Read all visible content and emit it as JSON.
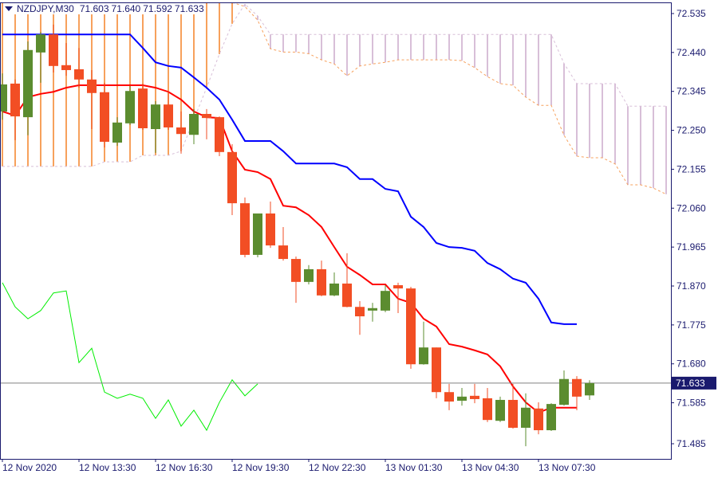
{
  "header": {
    "symbol": "NZDJPY,M30",
    "open": "71.603",
    "high": "71.640",
    "low": "71.592",
    "close": "71.633"
  },
  "colors": {
    "bull": "#5b8c2f",
    "bear": "#f24e24",
    "tenkan": "#ff0000",
    "kijun": "#0000ff",
    "chikou": "#00ee00",
    "cloud_bull": "#f7a15c",
    "cloud_bear": "#d8bfd8",
    "axis": "#1a1a6e",
    "price_line": "#808080",
    "price_label_bg": "#1a1a6e"
  },
  "chart_data": {
    "type": "candlestick",
    "symbol": "NZDJPY",
    "timeframe": "M30",
    "ylim": [
      71.44,
      72.56
    ],
    "y_ticks": [
      "72.535",
      "72.440",
      "72.345",
      "72.250",
      "72.155",
      "72.060",
      "71.965",
      "71.870",
      "71.775",
      "71.680",
      "71.585",
      "71.485"
    ],
    "x_ticks": [
      "12 Nov 2020",
      "12 Nov 13:30",
      "12 Nov 16:30",
      "12 Nov 19:30",
      "12 Nov 22:30",
      "13 Nov 01:30",
      "13 Nov 04:30",
      "13 Nov 07:30"
    ],
    "current_price": "71.633",
    "candles_ohlc": [
      [
        72.296,
        72.389,
        72.276,
        72.362
      ],
      [
        72.364,
        72.374,
        72.226,
        72.284
      ],
      [
        72.282,
        72.467,
        72.238,
        72.446
      ],
      [
        72.44,
        72.49,
        72.366,
        72.484
      ],
      [
        72.484,
        72.508,
        72.391,
        72.407
      ],
      [
        72.409,
        72.463,
        72.383,
        72.397
      ],
      [
        72.399,
        72.451,
        72.354,
        72.374
      ],
      [
        72.374,
        72.397,
        72.253,
        72.341
      ],
      [
        72.343,
        72.366,
        72.208,
        72.222
      ],
      [
        72.22,
        72.282,
        72.212,
        72.269
      ],
      [
        72.267,
        72.358,
        72.263,
        72.346
      ],
      [
        72.352,
        72.364,
        72.251,
        72.255
      ],
      [
        72.253,
        72.321,
        72.195,
        72.313
      ],
      [
        72.313,
        72.346,
        72.251,
        72.257
      ],
      [
        72.257,
        72.296,
        72.193,
        72.241
      ],
      [
        72.239,
        72.302,
        72.216,
        72.29
      ],
      [
        72.29,
        72.302,
        72.228,
        72.28
      ],
      [
        72.282,
        72.284,
        72.187,
        72.197
      ],
      [
        72.197,
        72.216,
        72.043,
        72.072
      ],
      [
        72.072,
        72.086,
        71.94,
        71.946
      ],
      [
        71.946,
        72.047,
        71.94,
        72.047
      ],
      [
        72.047,
        72.076,
        71.963,
        71.969
      ],
      [
        71.969,
        72.014,
        71.932,
        71.936
      ],
      [
        71.936,
        71.942,
        71.829,
        71.88
      ],
      [
        71.88,
        71.921,
        71.874,
        71.911
      ],
      [
        71.911,
        71.932,
        71.845,
        71.847
      ],
      [
        71.847,
        71.903,
        71.845,
        71.876
      ],
      [
        71.876,
        71.95,
        71.818,
        71.819
      ],
      [
        71.819,
        71.833,
        71.751,
        71.796
      ],
      [
        71.81,
        71.829,
        71.783,
        71.816
      ],
      [
        71.81,
        71.872,
        71.806,
        71.858
      ],
      [
        71.872,
        71.878,
        71.804,
        71.864
      ],
      [
        71.864,
        71.868,
        71.668,
        71.679
      ],
      [
        71.679,
        71.783,
        71.678,
        71.72
      ],
      [
        71.72,
        71.72,
        71.596,
        71.611
      ],
      [
        71.611,
        71.631,
        71.567,
        71.588
      ],
      [
        71.59,
        71.621,
        71.578,
        71.6
      ],
      [
        71.602,
        71.631,
        71.584,
        71.594
      ],
      [
        71.596,
        71.621,
        71.538,
        71.543
      ],
      [
        71.541,
        71.6,
        71.538,
        71.592
      ],
      [
        71.592,
        71.631,
        71.522,
        71.524
      ],
      [
        71.524,
        71.608,
        71.479,
        71.573
      ],
      [
        71.571,
        71.586,
        71.508,
        71.518
      ],
      [
        71.518,
        71.584,
        71.516,
        71.582
      ],
      [
        71.58,
        71.664,
        71.578,
        71.643
      ],
      [
        71.643,
        71.65,
        71.567,
        71.6
      ],
      [
        71.603,
        71.64,
        71.592,
        71.633
      ]
    ],
    "tenkan": [
      72.296,
      72.286,
      72.331,
      72.339,
      72.344,
      72.354,
      72.36,
      72.36,
      72.36,
      72.36,
      72.36,
      72.36,
      72.354,
      72.344,
      72.325,
      72.296,
      72.282,
      72.28,
      72.199,
      72.154,
      72.148,
      72.131,
      72.066,
      72.062,
      72.043,
      72.014,
      71.965,
      71.917,
      71.897,
      71.874,
      71.874,
      71.839,
      71.829,
      71.79,
      71.771,
      71.728,
      71.722,
      71.713,
      71.703,
      71.674,
      71.625,
      71.586,
      71.561,
      71.573,
      71.573,
      71.573
    ],
    "kijun": [
      72.484,
      72.484,
      72.484,
      72.484,
      72.484,
      72.484,
      72.484,
      72.484,
      72.484,
      72.484,
      72.484,
      72.451,
      72.416,
      72.407,
      72.403,
      72.379,
      72.354,
      72.325,
      72.276,
      72.224,
      72.224,
      72.224,
      72.199,
      72.169,
      72.169,
      72.169,
      72.169,
      72.16,
      72.131,
      72.131,
      72.107,
      72.101,
      72.039,
      72.014,
      71.975,
      71.965,
      71.963,
      71.956,
      71.926,
      71.911,
      71.888,
      71.878,
      71.839,
      71.781,
      71.777,
      71.777
    ],
    "chikou": [
      71.878,
      71.819,
      71.79,
      71.81,
      71.853,
      71.858,
      71.683,
      71.718,
      71.611,
      71.596,
      71.606,
      71.596,
      71.547,
      71.592,
      71.528,
      71.567,
      71.518,
      71.586,
      71.641,
      71.602,
      71.631
    ],
    "senkou_a": [
      72.6,
      72.6,
      72.6,
      72.6,
      72.6,
      72.6,
      72.6,
      72.6,
      72.6,
      72.6,
      72.6,
      72.6,
      72.6,
      72.6,
      72.6,
      72.6,
      72.6,
      72.6,
      72.6,
      72.552,
      72.519,
      72.449,
      72.441,
      72.441,
      72.437,
      72.422,
      72.412,
      72.383,
      72.407,
      72.412,
      72.416,
      72.422,
      72.422,
      72.422,
      72.422,
      72.422,
      72.42,
      72.403,
      72.381,
      72.364,
      72.36,
      72.331,
      72.311,
      72.311,
      72.238,
      72.187,
      72.183,
      72.183,
      72.168,
      72.117,
      72.117,
      72.109,
      72.094
    ],
    "senkou_b": [
      72.162,
      72.162,
      72.162,
      72.162,
      72.162,
      72.162,
      72.162,
      72.162,
      72.173,
      72.173,
      72.173,
      72.189,
      72.189,
      72.189,
      72.199,
      72.276,
      72.354,
      72.436,
      72.51,
      72.558,
      72.529,
      72.484,
      72.484,
      72.484,
      72.484,
      72.484,
      72.484,
      72.484,
      72.484,
      72.484,
      72.484,
      72.484,
      72.484,
      72.484,
      72.484,
      72.484,
      72.484,
      72.484,
      72.484,
      72.484,
      72.484,
      72.484,
      72.484,
      72.484,
      72.413,
      72.364,
      72.364,
      72.364,
      72.364,
      72.309,
      72.309,
      72.309,
      72.309
    ]
  }
}
